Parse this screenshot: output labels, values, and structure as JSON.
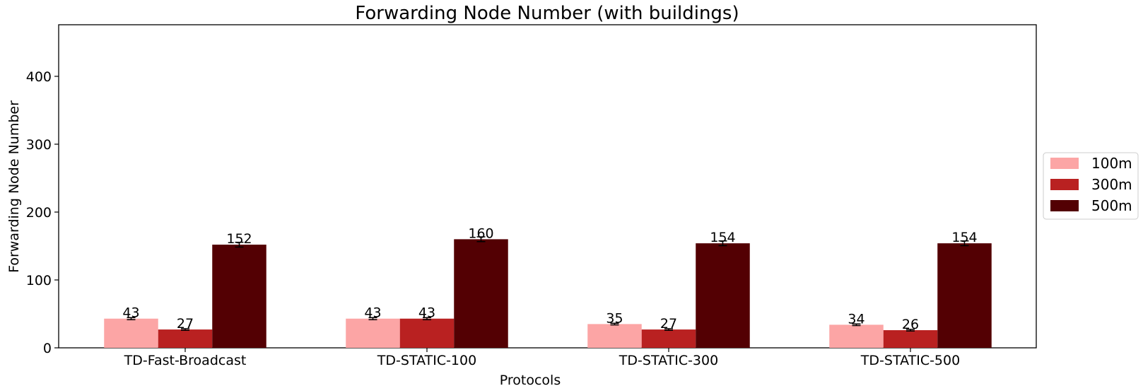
{
  "chart_data": {
    "type": "bar",
    "title": "Forwarding Node Number (with buildings)",
    "xlabel": "Protocols",
    "ylabel": "Forwarding Node Number",
    "categories": [
      "TD-Fast-Broadcast",
      "TD-STATIC-100",
      "TD-STATIC-300",
      "TD-STATIC-500"
    ],
    "series": [
      {
        "name": "100m",
        "color": "#fca5a5",
        "values": [
          43,
          43,
          35,
          34
        ],
        "errors": [
          1.5,
          1.5,
          1.2,
          1.2
        ]
      },
      {
        "name": "300m",
        "color": "#b92121",
        "values": [
          27,
          43,
          27,
          26
        ],
        "errors": [
          1.2,
          1.5,
          1.2,
          1.2
        ]
      },
      {
        "name": "500m",
        "color": "#530003",
        "values": [
          152,
          160,
          154,
          154
        ],
        "errors": [
          3.5,
          3.5,
          3.5,
          3.5
        ]
      }
    ],
    "data_labels": [
      [
        "43",
        "43",
        "35",
        "34"
      ],
      [
        "27",
        "43",
        "27",
        "26"
      ],
      [
        "152",
        "160",
        "154",
        "154"
      ]
    ],
    "ylim": [
      0,
      476
    ],
    "yticks": [
      0,
      100,
      200,
      300,
      400
    ],
    "grid": false,
    "legend_position": "right"
  }
}
